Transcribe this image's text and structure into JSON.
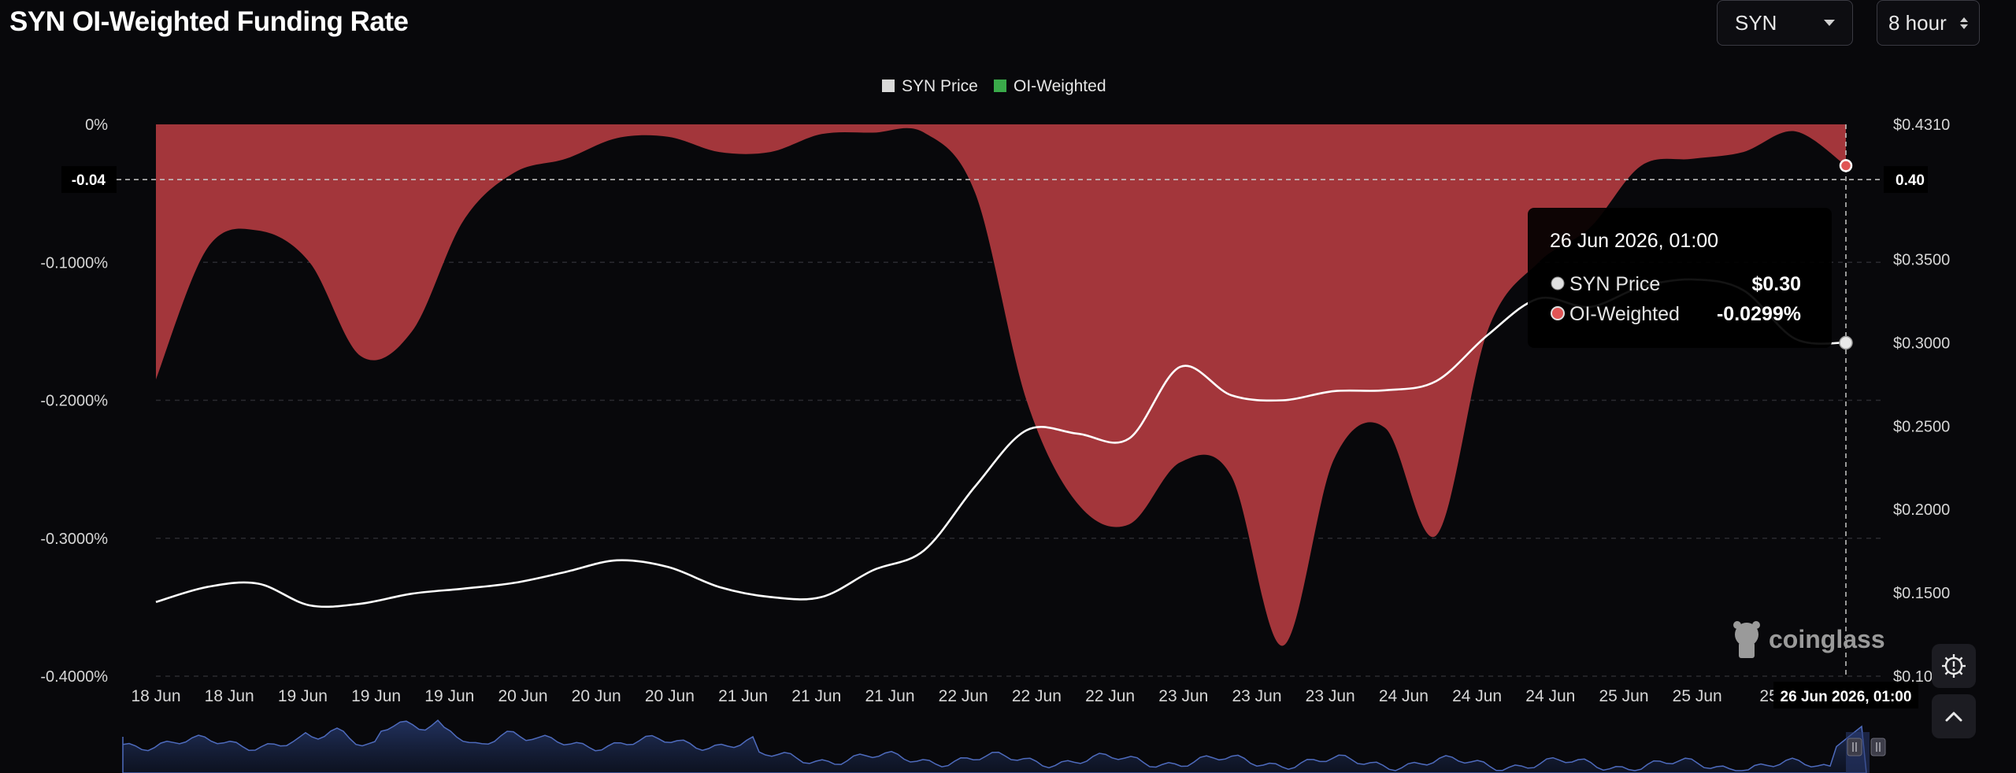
{
  "page": {
    "title": "SYN OI-Weighted Funding Rate",
    "coin_select": {
      "value": "SYN"
    },
    "interval_select": {
      "value": "8 hour"
    },
    "watermark": "coinglass",
    "icons": [
      "chevron-down-icon",
      "stepper-icon",
      "settings-icon",
      "scroll-top-icon"
    ]
  },
  "chart_data": {
    "type": "area",
    "legend": [
      {
        "name": "SYN Price",
        "color": "#d9d9d9"
      },
      {
        "name": "OI-Weighted",
        "color": "#3aaa4a"
      }
    ],
    "legend_position": "top-center",
    "left_axis": {
      "ticks": [
        0,
        -0.1,
        -0.2,
        -0.3,
        -0.4
      ],
      "tick_labels": [
        "0%",
        "-0.1000%",
        "-0.2000%",
        "-0.3000%",
        "-0.4000%"
      ],
      "range": [
        -0.4,
        0
      ]
    },
    "right_axis": {
      "ticks": [
        0.431,
        0.35,
        0.3,
        0.25,
        0.2,
        0.15,
        0.1
      ],
      "tick_labels": [
        "$0.4310",
        "$0.3500",
        "$0.3000",
        "$0.2500",
        "$0.2000",
        "$0.1500",
        "$0.10"
      ],
      "range": [
        0.1,
        0.431
      ]
    },
    "x_tick_labels": [
      "18 Jun",
      "18 Jun",
      "19 Jun",
      "19 Jun",
      "19 Jun",
      "20 Jun",
      "20 Jun",
      "20 Jun",
      "21 Jun",
      "21 Jun",
      "21 Jun",
      "22 Jun",
      "22 Jun",
      "22 Jun",
      "23 Jun",
      "23 Jun",
      "23 Jun",
      "24 Jun",
      "24 Jun",
      "24 Jun",
      "25 Jun",
      "25 Jun",
      "25"
    ],
    "grid": true,
    "series": [
      {
        "name": "OI-Weighted",
        "unit": "%",
        "color": "#a3363b",
        "values": [
          -0.185,
          -0.09,
          -0.077,
          -0.1,
          -0.168,
          -0.15,
          -0.07,
          -0.035,
          -0.025,
          -0.01,
          -0.009,
          -0.02,
          -0.02,
          -0.007,
          -0.006,
          -0.006,
          -0.05,
          -0.2,
          -0.275,
          -0.29,
          -0.245,
          -0.255,
          -0.378,
          -0.243,
          -0.22,
          -0.298,
          -0.15,
          -0.1,
          -0.075,
          -0.03,
          -0.025,
          -0.02,
          -0.005,
          -0.0299
        ]
      },
      {
        "name": "SYN Price",
        "unit": "$",
        "color": "#ffffff",
        "values": [
          0.1445,
          0.1535,
          0.1555,
          0.1425,
          0.1435,
          0.1495,
          0.1525,
          0.156,
          0.1625,
          0.1695,
          0.1655,
          0.1535,
          0.1475,
          0.1475,
          0.1635,
          0.1755,
          0.214,
          0.2475,
          0.2455,
          0.2425,
          0.2855,
          0.2685,
          0.2655,
          0.271,
          0.2715,
          0.277,
          0.3045,
          0.3265,
          0.3215,
          0.3335,
          0.338,
          0.3315,
          0.3025,
          0.3
        ]
      }
    ],
    "crosshair": {
      "x_label": "26 Jun 2026, 01:00",
      "funding_rate": -0.04,
      "funding_label": "-0.04",
      "price": 0.4,
      "price_label": "0.40"
    },
    "tooltip": {
      "title": "26 Jun 2026, 01:00",
      "rows": [
        {
          "name": "SYN Price",
          "value": "$0.30",
          "color": "#e0e0e0"
        },
        {
          "name": "OI-Weighted",
          "value": "-0.0299%",
          "color": "#e05555"
        }
      ]
    }
  }
}
